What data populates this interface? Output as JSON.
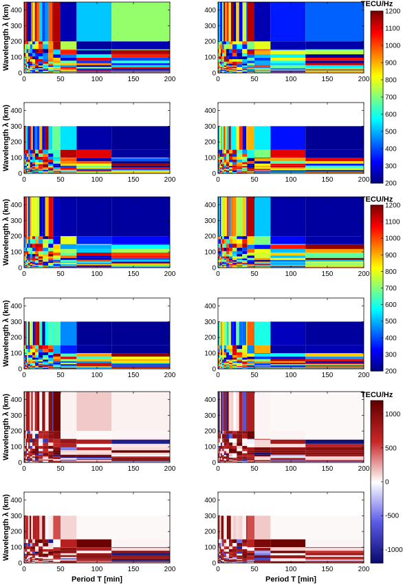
{
  "figure": {
    "ylabel": "Wavelength λ (km)",
    "xlabel": "Period T [min]",
    "colorbar_unit": "TECU/Hz"
  },
  "chart_data": [
    {
      "type": "heatmap",
      "panel": "row1-left",
      "xlim": [
        0,
        200
      ],
      "ylim": [
        0,
        450
      ],
      "xticks": [
        0,
        50,
        100,
        150,
        200
      ],
      "yticks": [
        0,
        100,
        200,
        300,
        400
      ],
      "colormap": "jet",
      "clim": [
        200,
        1200
      ],
      "y_max_data": 450,
      "blocks": [
        {
          "x": [
            40,
            50
          ],
          "y": [
            200,
            450
          ],
          "v": 1150
        },
        {
          "x": [
            50,
            72
          ],
          "y": [
            200,
            450
          ],
          "v": 250
        },
        {
          "x": [
            72,
            120
          ],
          "y": [
            200,
            450
          ],
          "v": 520
        },
        {
          "x": [
            120,
            200
          ],
          "y": [
            200,
            450
          ],
          "v": 720
        },
        {
          "x": [
            50,
            72
          ],
          "y": [
            150,
            200
          ],
          "v": 750
        },
        {
          "x": [
            72,
            120
          ],
          "y": [
            150,
            200
          ],
          "v": 230
        },
        {
          "x": [
            120,
            200
          ],
          "y": [
            150,
            200
          ],
          "v": 250
        }
      ]
    },
    {
      "type": "heatmap",
      "panel": "row1-right",
      "xlim": [
        0,
        200
      ],
      "ylim": [
        0,
        450
      ],
      "xticks": [
        0,
        50,
        100,
        150,
        200
      ],
      "yticks": [
        0,
        100,
        200,
        300,
        400
      ],
      "colormap": "jet",
      "clim": [
        200,
        1200
      ],
      "y_max_data": 450,
      "blocks": [
        {
          "x": [
            40,
            50
          ],
          "y": [
            200,
            450
          ],
          "v": 1150
        },
        {
          "x": [
            50,
            72
          ],
          "y": [
            200,
            450
          ],
          "v": 250
        },
        {
          "x": [
            72,
            120
          ],
          "y": [
            200,
            450
          ],
          "v": 350
        },
        {
          "x": [
            120,
            200
          ],
          "y": [
            200,
            450
          ],
          "v": 420
        },
        {
          "x": [
            50,
            72
          ],
          "y": [
            150,
            200
          ],
          "v": 800
        },
        {
          "x": [
            72,
            120
          ],
          "y": [
            150,
            200
          ],
          "v": 250
        },
        {
          "x": [
            120,
            200
          ],
          "y": [
            150,
            200
          ],
          "v": 240
        }
      ]
    },
    {
      "type": "heatmap",
      "panel": "row2-left",
      "xlim": [
        0,
        200
      ],
      "ylim": [
        0,
        450
      ],
      "xticks": [
        0,
        50,
        100,
        150,
        200
      ],
      "yticks": [
        0,
        100,
        200,
        300,
        400
      ],
      "colormap": "jet",
      "clim": [
        200,
        1200
      ],
      "y_max_data": 300,
      "blocks": [
        {
          "x": [
            40,
            50
          ],
          "y": [
            150,
            300
          ],
          "v": 680
        },
        {
          "x": [
            50,
            72
          ],
          "y": [
            150,
            300
          ],
          "v": 550
        },
        {
          "x": [
            72,
            120
          ],
          "y": [
            150,
            300
          ],
          "v": 240
        },
        {
          "x": [
            120,
            200
          ],
          "y": [
            150,
            300
          ],
          "v": 220
        },
        {
          "x": [
            72,
            120
          ],
          "y": [
            100,
            150
          ],
          "v": 1100
        },
        {
          "x": [
            120,
            200
          ],
          "y": [
            100,
            150
          ],
          "v": 230
        }
      ]
    },
    {
      "type": "heatmap",
      "panel": "row2-right",
      "xlim": [
        0,
        200
      ],
      "ylim": [
        0,
        450
      ],
      "xticks": [
        0,
        50,
        100,
        150,
        200
      ],
      "yticks": [
        0,
        100,
        200,
        300,
        400
      ],
      "colormap": "jet",
      "clim": [
        200,
        1200
      ],
      "y_max_data": 300,
      "blocks": [
        {
          "x": [
            40,
            50
          ],
          "y": [
            150,
            300
          ],
          "v": 900
        },
        {
          "x": [
            50,
            72
          ],
          "y": [
            150,
            300
          ],
          "v": 560
        },
        {
          "x": [
            72,
            120
          ],
          "y": [
            150,
            300
          ],
          "v": 340
        },
        {
          "x": [
            120,
            200
          ],
          "y": [
            150,
            300
          ],
          "v": 220
        },
        {
          "x": [
            72,
            120
          ],
          "y": [
            100,
            150
          ],
          "v": 1100
        },
        {
          "x": [
            120,
            200
          ],
          "y": [
            100,
            150
          ],
          "v": 230
        }
      ]
    },
    {
      "type": "heatmap",
      "panel": "row3-left",
      "xlim": [
        0,
        200
      ],
      "ylim": [
        0,
        450
      ],
      "xticks": [
        0,
        50,
        100,
        150,
        200
      ],
      "yticks": [
        0,
        100,
        200,
        300,
        400
      ],
      "colormap": "jet",
      "clim": [
        200,
        1200
      ],
      "y_max_data": 450,
      "blocks": [
        {
          "x": [
            40,
            50
          ],
          "y": [
            200,
            450
          ],
          "v": 260
        },
        {
          "x": [
            50,
            72
          ],
          "y": [
            200,
            450
          ],
          "v": 240
        },
        {
          "x": [
            72,
            120
          ],
          "y": [
            200,
            450
          ],
          "v": 230
        },
        {
          "x": [
            120,
            200
          ],
          "y": [
            200,
            450
          ],
          "v": 230
        },
        {
          "x": [
            50,
            72
          ],
          "y": [
            150,
            200
          ],
          "v": 800
        },
        {
          "x": [
            72,
            120
          ],
          "y": [
            150,
            200
          ],
          "v": 360
        },
        {
          "x": [
            120,
            200
          ],
          "y": [
            150,
            200
          ],
          "v": 330
        }
      ]
    },
    {
      "type": "heatmap",
      "panel": "row3-right",
      "xlim": [
        0,
        200
      ],
      "ylim": [
        0,
        450
      ],
      "xticks": [
        0,
        50,
        100,
        150,
        200
      ],
      "yticks": [
        0,
        100,
        200,
        300,
        400
      ],
      "colormap": "jet",
      "clim": [
        200,
        1200
      ],
      "y_max_data": 450,
      "blocks": [
        {
          "x": [
            40,
            50
          ],
          "y": [
            200,
            450
          ],
          "v": 1150
        },
        {
          "x": [
            50,
            72
          ],
          "y": [
            200,
            450
          ],
          "v": 520
        },
        {
          "x": [
            72,
            120
          ],
          "y": [
            200,
            450
          ],
          "v": 240
        },
        {
          "x": [
            120,
            200
          ],
          "y": [
            200,
            450
          ],
          "v": 230
        },
        {
          "x": [
            50,
            72
          ],
          "y": [
            150,
            200
          ],
          "v": 700
        },
        {
          "x": [
            72,
            120
          ],
          "y": [
            150,
            200
          ],
          "v": 330
        },
        {
          "x": [
            120,
            200
          ],
          "y": [
            150,
            200
          ],
          "v": 240
        }
      ]
    },
    {
      "type": "heatmap",
      "panel": "row4-left",
      "xlim": [
        0,
        200
      ],
      "ylim": [
        0,
        450
      ],
      "xticks": [
        0,
        50,
        100,
        150,
        200
      ],
      "yticks": [
        0,
        100,
        200,
        300,
        400
      ],
      "colormap": "jet",
      "clim": [
        200,
        1200
      ],
      "y_max_data": 300,
      "blocks": [
        {
          "x": [
            40,
            50
          ],
          "y": [
            150,
            300
          ],
          "v": 650
        },
        {
          "x": [
            50,
            72
          ],
          "y": [
            150,
            300
          ],
          "v": 460
        },
        {
          "x": [
            72,
            120
          ],
          "y": [
            150,
            300
          ],
          "v": 220
        },
        {
          "x": [
            120,
            200
          ],
          "y": [
            150,
            300
          ],
          "v": 220
        },
        {
          "x": [
            72,
            120
          ],
          "y": [
            100,
            150
          ],
          "v": 230
        },
        {
          "x": [
            120,
            200
          ],
          "y": [
            100,
            150
          ],
          "v": 220
        }
      ]
    },
    {
      "type": "heatmap",
      "panel": "row4-right",
      "xlim": [
        0,
        200
      ],
      "ylim": [
        0,
        450
      ],
      "xticks": [
        0,
        50,
        100,
        150,
        200
      ],
      "yticks": [
        0,
        100,
        200,
        300,
        400
      ],
      "colormap": "jet",
      "clim": [
        200,
        1200
      ],
      "y_max_data": 300,
      "blocks": [
        {
          "x": [
            40,
            50
          ],
          "y": [
            150,
            300
          ],
          "v": 980
        },
        {
          "x": [
            50,
            72
          ],
          "y": [
            150,
            300
          ],
          "v": 600
        },
        {
          "x": [
            72,
            120
          ],
          "y": [
            150,
            300
          ],
          "v": 260
        },
        {
          "x": [
            120,
            200
          ],
          "y": [
            150,
            300
          ],
          "v": 230
        },
        {
          "x": [
            72,
            120
          ],
          "y": [
            100,
            150
          ],
          "v": 240
        },
        {
          "x": [
            120,
            200
          ],
          "y": [
            100,
            150
          ],
          "v": 250
        }
      ]
    },
    {
      "type": "heatmap",
      "panel": "row5-left",
      "xlim": [
        0,
        200
      ],
      "ylim": [
        0,
        450
      ],
      "xticks": [
        0,
        50,
        100,
        150,
        200
      ],
      "yticks": [
        0,
        100,
        200,
        300,
        400
      ],
      "colormap": "blue-white-red",
      "clim": [
        -1200,
        1200
      ],
      "y_max_data": 450,
      "blocks": [
        {
          "x": [
            40,
            50
          ],
          "y": [
            200,
            450
          ],
          "v": 1150
        },
        {
          "x": [
            50,
            72
          ],
          "y": [
            200,
            450
          ],
          "v": 40
        },
        {
          "x": [
            72,
            120
          ],
          "y": [
            200,
            450
          ],
          "v": 150
        },
        {
          "x": [
            120,
            200
          ],
          "y": [
            200,
            450
          ],
          "v": 40
        },
        {
          "x": [
            50,
            72
          ],
          "y": [
            150,
            200
          ],
          "v": 30
        },
        {
          "x": [
            72,
            120
          ],
          "y": [
            150,
            200
          ],
          "v": 20
        },
        {
          "x": [
            120,
            200
          ],
          "y": [
            150,
            200
          ],
          "v": 30
        }
      ]
    },
    {
      "type": "heatmap",
      "panel": "row5-right",
      "xlim": [
        0,
        200
      ],
      "ylim": [
        0,
        450
      ],
      "xticks": [
        0,
        50,
        100,
        150,
        200
      ],
      "yticks": [
        0,
        100,
        200,
        300,
        400
      ],
      "colormap": "blue-white-red",
      "clim": [
        -1200,
        1200
      ],
      "y_max_data": 450,
      "blocks": [
        {
          "x": [
            40,
            50
          ],
          "y": [
            200,
            450
          ],
          "v": 750
        },
        {
          "x": [
            50,
            72
          ],
          "y": [
            200,
            450
          ],
          "v": 30
        },
        {
          "x": [
            72,
            120
          ],
          "y": [
            200,
            450
          ],
          "v": 20
        },
        {
          "x": [
            120,
            200
          ],
          "y": [
            200,
            450
          ],
          "v": 20
        },
        {
          "x": [
            50,
            72
          ],
          "y": [
            150,
            200
          ],
          "v": 30
        },
        {
          "x": [
            72,
            120
          ],
          "y": [
            150,
            200
          ],
          "v": 30
        },
        {
          "x": [
            120,
            200
          ],
          "y": [
            150,
            200
          ],
          "v": 20
        }
      ]
    },
    {
      "type": "heatmap",
      "panel": "row6-left",
      "xlim": [
        0,
        200
      ],
      "ylim": [
        0,
        450
      ],
      "xticks": [
        0,
        50,
        100,
        150,
        200
      ],
      "yticks": [
        0,
        100,
        200,
        300,
        400
      ],
      "colormap": "blue-white-red",
      "clim": [
        -1200,
        1200
      ],
      "y_max_data": 300,
      "blocks": [
        {
          "x": [
            40,
            50
          ],
          "y": [
            150,
            300
          ],
          "v": 500
        },
        {
          "x": [
            50,
            72
          ],
          "y": [
            150,
            300
          ],
          "v": 120
        },
        {
          "x": [
            72,
            120
          ],
          "y": [
            150,
            300
          ],
          "v": 20
        },
        {
          "x": [
            120,
            200
          ],
          "y": [
            150,
            300
          ],
          "v": 20
        },
        {
          "x": [
            72,
            120
          ],
          "y": [
            100,
            150
          ],
          "v": 1150
        },
        {
          "x": [
            120,
            200
          ],
          "y": [
            100,
            150
          ],
          "v": 30
        }
      ]
    },
    {
      "type": "heatmap",
      "panel": "row6-right",
      "xlim": [
        0,
        200
      ],
      "ylim": [
        0,
        450
      ],
      "xticks": [
        0,
        50,
        100,
        150,
        200
      ],
      "yticks": [
        0,
        100,
        200,
        300,
        400
      ],
      "colormap": "blue-white-red",
      "clim": [
        -1200,
        1200
      ],
      "y_max_data": 300,
      "blocks": [
        {
          "x": [
            40,
            50
          ],
          "y": [
            150,
            300
          ],
          "v": 500
        },
        {
          "x": [
            50,
            72
          ],
          "y": [
            150,
            300
          ],
          "v": 150
        },
        {
          "x": [
            72,
            120
          ],
          "y": [
            150,
            300
          ],
          "v": 20
        },
        {
          "x": [
            120,
            200
          ],
          "y": [
            150,
            300
          ],
          "v": 20
        },
        {
          "x": [
            72,
            120
          ],
          "y": [
            100,
            150
          ],
          "v": 1150
        },
        {
          "x": [
            120,
            200
          ],
          "y": [
            100,
            150
          ],
          "v": 30
        }
      ]
    }
  ],
  "colorbars": [
    {
      "colormap": "jet",
      "ticks": [
        200,
        300,
        400,
        500,
        600,
        700,
        800,
        900,
        1000,
        1100,
        1200
      ],
      "range": [
        200,
        1200
      ]
    },
    {
      "colormap": "jet",
      "ticks": [
        200,
        300,
        400,
        500,
        600,
        700,
        800,
        900,
        1000,
        1100,
        1200
      ],
      "range": [
        200,
        1200
      ]
    },
    {
      "colormap": "blue-white-red",
      "ticks": [
        -1000,
        -500,
        0,
        500,
        1000
      ],
      "range": [
        -1200,
        1200
      ]
    }
  ],
  "colors": {
    "axis": "#000000",
    "background": "#ffffff"
  }
}
